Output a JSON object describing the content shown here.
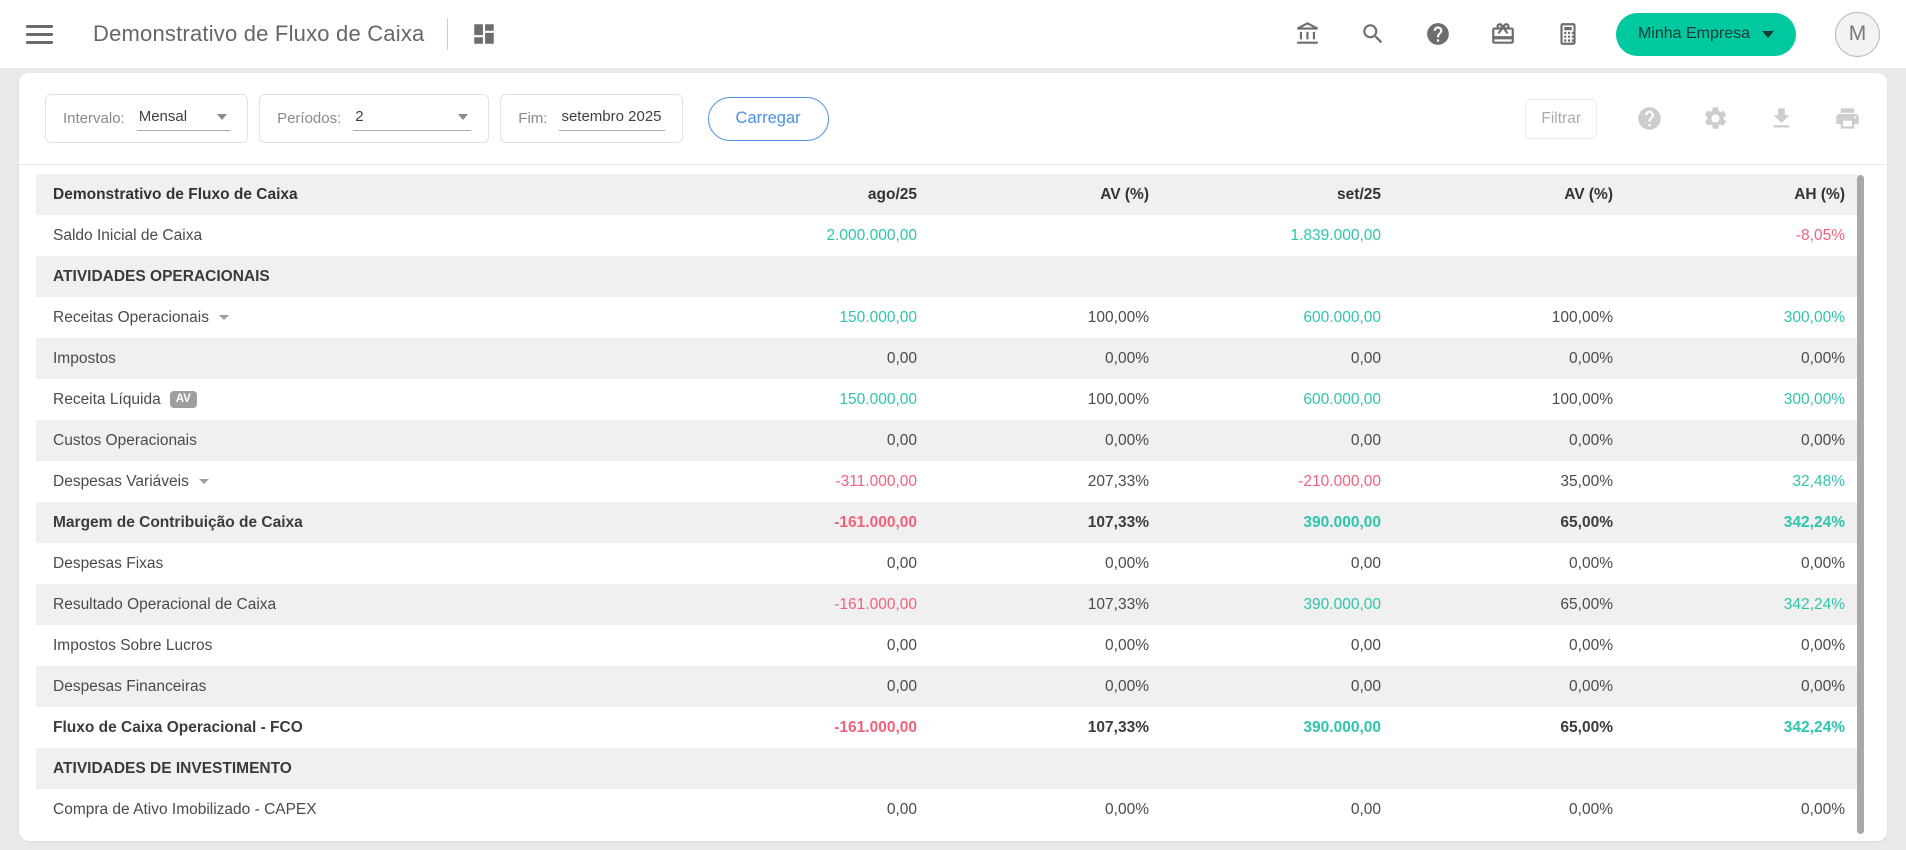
{
  "colors": {
    "brand": "#00c9a0",
    "blue": "#4a90e2",
    "pos": "#2ec5ad",
    "neg": "#f4607c",
    "page_bg": "#e9e9e9"
  },
  "topbar": {
    "title": "Demonstrativo de Fluxo de Caixa",
    "icons": [
      "menu-icon",
      "dashboard-icon",
      "bank-icon",
      "search-icon",
      "help-icon",
      "gift-icon",
      "calculator-icon"
    ],
    "company_button": "Minha Empresa",
    "avatar_letter": "M"
  },
  "toolbar": {
    "interval_label": "Intervalo:",
    "interval_value": "Mensal",
    "periods_label": "Períodos:",
    "periods_value": "2",
    "end_label": "Fim:",
    "end_value": "setembro 2025",
    "load_button": "Carregar",
    "filter_button": "Filtrar",
    "icons": [
      "help-circle-icon",
      "settings-gear-icon",
      "download-icon",
      "print-icon"
    ]
  },
  "table": {
    "columns": [
      "Demonstrativo de Fluxo de Caixa",
      "ago/25",
      "AV (%)",
      "set/25",
      "AV (%)",
      "AH (%)"
    ],
    "rows": [
      {
        "name": "saldo-inicial-de-caixa",
        "label": "Saldo Inicial de Caixa",
        "cells": [
          {
            "t": "2.000.000,00",
            "c": "pos"
          },
          {
            "t": ""
          },
          {
            "t": "1.839.000,00",
            "c": "pos"
          },
          {
            "t": ""
          },
          {
            "t": "-8,05%",
            "c": "neg"
          }
        ]
      },
      {
        "name": "atividades-operacionais",
        "label": "ATIVIDADES OPERACIONAIS",
        "section": true,
        "cells": [
          {
            "t": ""
          },
          {
            "t": ""
          },
          {
            "t": ""
          },
          {
            "t": ""
          },
          {
            "t": ""
          }
        ]
      },
      {
        "name": "receitas-operacionais",
        "label": "Receitas Operacionais",
        "caret": true,
        "cells": [
          {
            "t": "150.000,00",
            "c": "pos"
          },
          {
            "t": "100,00%"
          },
          {
            "t": "600.000,00",
            "c": "pos"
          },
          {
            "t": "100,00%"
          },
          {
            "t": "300,00%",
            "c": "pos"
          }
        ]
      },
      {
        "name": "impostos",
        "label": "Impostos",
        "cells": [
          {
            "t": "0,00"
          },
          {
            "t": "0,00%"
          },
          {
            "t": "0,00"
          },
          {
            "t": "0,00%"
          },
          {
            "t": "0,00%"
          }
        ]
      },
      {
        "name": "receita-liquida",
        "label": "Receita Líquida",
        "badge": "AV",
        "cells": [
          {
            "t": "150.000,00",
            "c": "pos"
          },
          {
            "t": "100,00%"
          },
          {
            "t": "600.000,00",
            "c": "pos"
          },
          {
            "t": "100,00%"
          },
          {
            "t": "300,00%",
            "c": "pos"
          }
        ]
      },
      {
        "name": "custos-operacionais",
        "label": "Custos Operacionais",
        "cells": [
          {
            "t": "0,00"
          },
          {
            "t": "0,00%"
          },
          {
            "t": "0,00"
          },
          {
            "t": "0,00%"
          },
          {
            "t": "0,00%"
          }
        ]
      },
      {
        "name": "despesas-variaveis",
        "label": "Despesas Variáveis",
        "caret": true,
        "cells": [
          {
            "t": "-311.000,00",
            "c": "neg"
          },
          {
            "t": "207,33%"
          },
          {
            "t": "-210.000,00",
            "c": "neg"
          },
          {
            "t": "35,00%"
          },
          {
            "t": "32,48%",
            "c": "pos"
          }
        ]
      },
      {
        "name": "margem-de-contribuicao-de-caixa",
        "label": "Margem de Contribuição de Caixa",
        "bold": true,
        "cells": [
          {
            "t": "-161.000,00",
            "c": "neg"
          },
          {
            "t": "107,33%"
          },
          {
            "t": "390.000,00",
            "c": "pos"
          },
          {
            "t": "65,00%"
          },
          {
            "t": "342,24%",
            "c": "pos"
          }
        ]
      },
      {
        "name": "despesas-fixas",
        "label": "Despesas Fixas",
        "cells": [
          {
            "t": "0,00"
          },
          {
            "t": "0,00%"
          },
          {
            "t": "0,00"
          },
          {
            "t": "0,00%"
          },
          {
            "t": "0,00%"
          }
        ]
      },
      {
        "name": "resultado-operacional-de-caixa",
        "label": "Resultado Operacional de Caixa",
        "cells": [
          {
            "t": "-161.000,00",
            "c": "neg"
          },
          {
            "t": "107,33%"
          },
          {
            "t": "390.000,00",
            "c": "pos"
          },
          {
            "t": "65,00%"
          },
          {
            "t": "342,24%",
            "c": "pos"
          }
        ]
      },
      {
        "name": "impostos-sobre-lucros",
        "label": "Impostos Sobre Lucros",
        "cells": [
          {
            "t": "0,00"
          },
          {
            "t": "0,00%"
          },
          {
            "t": "0,00"
          },
          {
            "t": "0,00%"
          },
          {
            "t": "0,00%"
          }
        ]
      },
      {
        "name": "despesas-financeiras",
        "label": "Despesas Financeiras",
        "cells": [
          {
            "t": "0,00"
          },
          {
            "t": "0,00%"
          },
          {
            "t": "0,00"
          },
          {
            "t": "0,00%"
          },
          {
            "t": "0,00%"
          }
        ]
      },
      {
        "name": "fluxo-de-caixa-operacional-fco",
        "label": "Fluxo de Caixa Operacional - FCO",
        "bold": true,
        "cells": [
          {
            "t": "-161.000,00",
            "c": "neg"
          },
          {
            "t": "107,33%"
          },
          {
            "t": "390.000,00",
            "c": "pos"
          },
          {
            "t": "65,00%"
          },
          {
            "t": "342,24%",
            "c": "pos"
          }
        ]
      },
      {
        "name": "atividades-de-investimento",
        "label": "ATIVIDADES DE INVESTIMENTO",
        "section": true,
        "cells": [
          {
            "t": ""
          },
          {
            "t": ""
          },
          {
            "t": ""
          },
          {
            "t": ""
          },
          {
            "t": ""
          }
        ]
      },
      {
        "name": "compra-de-ativo-imobilizado-capex",
        "label": "Compra de Ativo Imobilizado - CAPEX",
        "cells": [
          {
            "t": "0,00"
          },
          {
            "t": "0,00%"
          },
          {
            "t": "0,00"
          },
          {
            "t": "0,00%"
          },
          {
            "t": "0,00%"
          }
        ]
      }
    ]
  }
}
